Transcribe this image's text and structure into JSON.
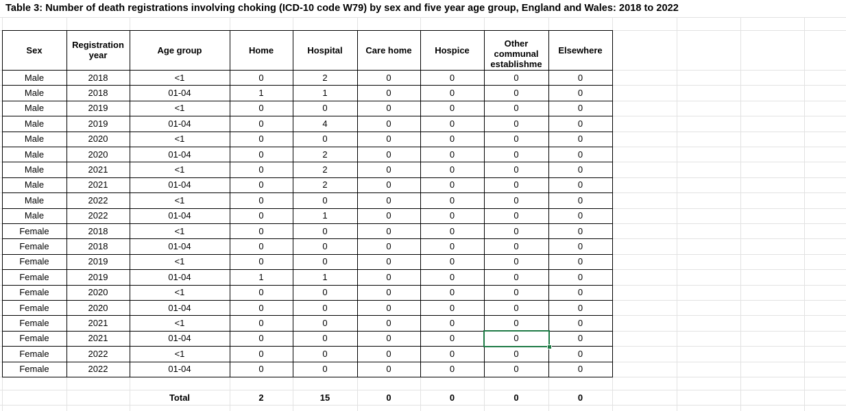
{
  "sheet": {
    "title": "Table 3: Number of death registrations involving choking (ICD-10 code W79) by sex and five year age group, England and Wales: 2018 to 2022",
    "headers": [
      "Sex",
      "Registration year",
      "Age group",
      "Home",
      "Hospital",
      "Care home",
      "Hospice",
      "Other communal establishme",
      "Elsewhere"
    ],
    "other_header_lines": [
      "Other",
      "communal",
      "establishme"
    ],
    "rows": [
      [
        "Male",
        "2018",
        "<1",
        "0",
        "2",
        "0",
        "0",
        "0",
        "0"
      ],
      [
        "Male",
        "2018",
        "01-04",
        "1",
        "1",
        "0",
        "0",
        "0",
        "0"
      ],
      [
        "Male",
        "2019",
        "<1",
        "0",
        "0",
        "0",
        "0",
        "0",
        "0"
      ],
      [
        "Male",
        "2019",
        "01-04",
        "0",
        "4",
        "0",
        "0",
        "0",
        "0"
      ],
      [
        "Male",
        "2020",
        "<1",
        "0",
        "0",
        "0",
        "0",
        "0",
        "0"
      ],
      [
        "Male",
        "2020",
        "01-04",
        "0",
        "2",
        "0",
        "0",
        "0",
        "0"
      ],
      [
        "Male",
        "2021",
        "<1",
        "0",
        "2",
        "0",
        "0",
        "0",
        "0"
      ],
      [
        "Male",
        "2021",
        "01-04",
        "0",
        "2",
        "0",
        "0",
        "0",
        "0"
      ],
      [
        "Male",
        "2022",
        "<1",
        "0",
        "0",
        "0",
        "0",
        "0",
        "0"
      ],
      [
        "Male",
        "2022",
        "01-04",
        "0",
        "1",
        "0",
        "0",
        "0",
        "0"
      ],
      [
        "Female",
        "2018",
        "<1",
        "0",
        "0",
        "0",
        "0",
        "0",
        "0"
      ],
      [
        "Female",
        "2018",
        "01-04",
        "0",
        "0",
        "0",
        "0",
        "0",
        "0"
      ],
      [
        "Female",
        "2019",
        "<1",
        "0",
        "0",
        "0",
        "0",
        "0",
        "0"
      ],
      [
        "Female",
        "2019",
        "01-04",
        "1",
        "1",
        "0",
        "0",
        "0",
        "0"
      ],
      [
        "Female",
        "2020",
        "<1",
        "0",
        "0",
        "0",
        "0",
        "0",
        "0"
      ],
      [
        "Female",
        "2020",
        "01-04",
        "0",
        "0",
        "0",
        "0",
        "0",
        "0"
      ],
      [
        "Female",
        "2021",
        "<1",
        "0",
        "0",
        "0",
        "0",
        "0",
        "0"
      ],
      [
        "Female",
        "2021",
        "01-04",
        "0",
        "0",
        "0",
        "0",
        "0",
        "0"
      ],
      [
        "Female",
        "2022",
        "<1",
        "0",
        "0",
        "0",
        "0",
        "0",
        "0"
      ],
      [
        "Female",
        "2022",
        "01-04",
        "0",
        "0",
        "0",
        "0",
        "0",
        "0"
      ]
    ],
    "totals": {
      "label": "Total",
      "values": [
        "2",
        "15",
        "0",
        "0",
        "0",
        "0"
      ]
    },
    "selected_cell": {
      "row": 17,
      "col": 7
    },
    "colors": {
      "gridline": "#e2e2e2",
      "border": "#000000",
      "selection": "#1e7a45"
    }
  }
}
